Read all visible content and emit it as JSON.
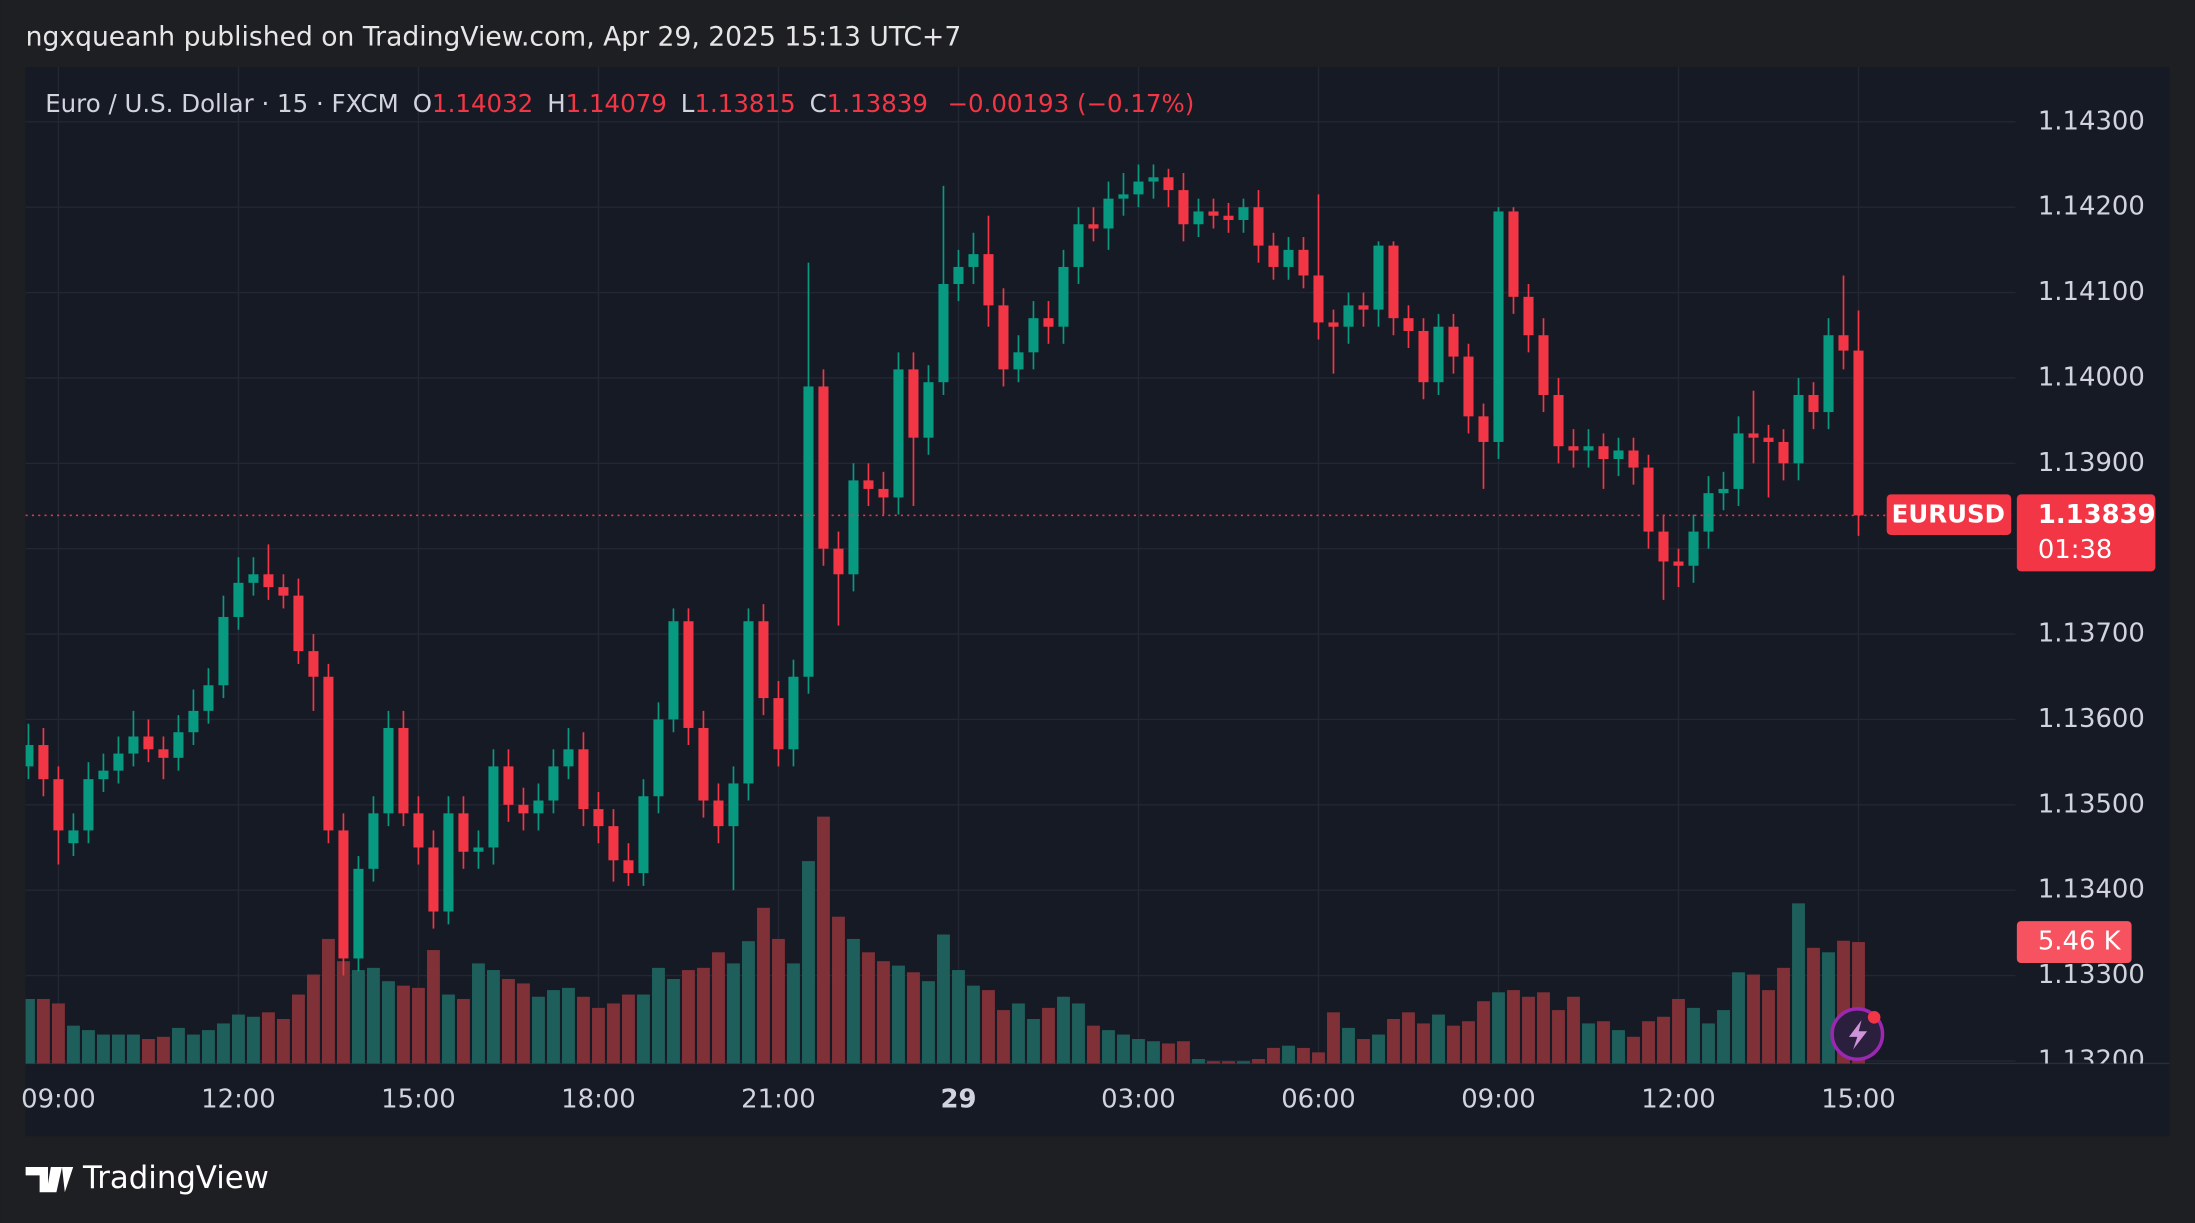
{
  "chart_data": {
    "type": "candlestick",
    "attribution": "ngxqueanh published on TradingView.com, Apr 29, 2025 15:13 UTC+7",
    "symbol": "Euro / U.S. Dollar · 15 · FXCM",
    "ohlc_labels": [
      "O",
      "H",
      "L",
      "C"
    ],
    "change_label": "−0.00193 (−0.17%)",
    "ticker": "EURUSD",
    "countdown": "01:38",
    "last_volume_label": "5.46 K",
    "brand": "TradingView",
    "colors": {
      "up": "#089981",
      "down": "#f23645",
      "volume_up": "#1f5f5b",
      "volume_down": "#7f3137"
    },
    "grid": true,
    "ylim": [
      1.13197,
      1.14364
    ],
    "yticks": [
      {
        "value": 1.132,
        "label": "1.13200"
      },
      {
        "value": 1.133,
        "label": "1.13300"
      },
      {
        "value": 1.134,
        "label": "1.13400"
      },
      {
        "value": 1.135,
        "label": "1.13500"
      },
      {
        "value": 1.136,
        "label": "1.13600"
      },
      {
        "value": 1.137,
        "label": "1.13700"
      },
      {
        "value": 1.138,
        "label": "1.13800"
      },
      {
        "value": 1.139,
        "label": "1.13900"
      },
      {
        "value": 1.14,
        "label": "1.14000"
      },
      {
        "value": 1.141,
        "label": "1.14100"
      },
      {
        "value": 1.142,
        "label": "1.14200"
      },
      {
        "value": 1.143,
        "label": "1.14300"
      }
    ],
    "volume_ylim": [
      0,
      44.8
    ],
    "categories": [
      null,
      null,
      "09:00",
      null,
      null,
      null,
      null,
      null,
      null,
      null,
      null,
      null,
      null,
      null,
      "12:00",
      null,
      null,
      null,
      null,
      null,
      null,
      null,
      null,
      null,
      null,
      null,
      "15:00",
      null,
      null,
      null,
      null,
      null,
      null,
      null,
      null,
      null,
      null,
      null,
      "18:00",
      null,
      null,
      null,
      null,
      null,
      null,
      null,
      null,
      null,
      null,
      null,
      "21:00",
      null,
      null,
      null,
      null,
      null,
      null,
      null,
      null,
      null,
      null,
      null,
      "29",
      null,
      null,
      null,
      null,
      null,
      null,
      null,
      null,
      null,
      null,
      null,
      "03:00",
      null,
      null,
      null,
      null,
      null,
      null,
      null,
      null,
      null,
      null,
      null,
      "06:00",
      null,
      null,
      null,
      null,
      null,
      null,
      null,
      null,
      null,
      null,
      null,
      "09:00",
      null,
      null,
      null,
      null,
      null,
      null,
      null,
      null,
      null,
      null,
      null,
      "12:00",
      null,
      null,
      null,
      null,
      null,
      null,
      null,
      null,
      null,
      null,
      null,
      "15:00"
    ],
    "open": [
      1.13545,
      1.1357,
      1.1353,
      1.13455,
      1.1347,
      1.1353,
      1.1354,
      1.1356,
      1.1358,
      1.13565,
      1.13555,
      1.13585,
      1.1361,
      1.1364,
      1.1372,
      1.1376,
      1.1377,
      1.13755,
      1.13745,
      1.1368,
      1.1365,
      1.1347,
      1.1332,
      1.13425,
      1.1349,
      1.1359,
      1.1349,
      1.1345,
      1.13375,
      1.1349,
      1.13445,
      1.1345,
      1.13545,
      1.135,
      1.1349,
      1.13505,
      1.13545,
      1.13565,
      1.13495,
      1.13475,
      1.13435,
      1.1342,
      1.1351,
      1.136,
      1.13715,
      1.1359,
      1.13505,
      1.13475,
      1.13525,
      1.13715,
      1.13625,
      1.13565,
      1.1365,
      1.1399,
      1.138,
      1.1377,
      1.1388,
      1.1387,
      1.1386,
      1.1401,
      1.1393,
      1.13995,
      1.1411,
      1.1413,
      1.14145,
      1.14085,
      1.1401,
      1.1403,
      1.1407,
      1.1406,
      1.1413,
      1.1418,
      1.14175,
      1.1421,
      1.14215,
      1.1423,
      1.14235,
      1.1422,
      1.1418,
      1.14195,
      1.1419,
      1.14185,
      1.142,
      1.14155,
      1.1413,
      1.1415,
      1.1412,
      1.14065,
      1.1406,
      1.14085,
      1.1408,
      1.14155,
      1.1407,
      1.14055,
      1.13995,
      1.1406,
      1.14025,
      1.13955,
      1.13925,
      1.14195,
      1.14095,
      1.1405,
      1.1398,
      1.1392,
      1.13915,
      1.1392,
      1.13905,
      1.13915,
      1.13895,
      1.1382,
      1.13785,
      1.1378,
      1.1382,
      1.13865,
      1.1387,
      1.13935,
      1.1393,
      1.13925,
      1.139,
      1.1398,
      1.1396,
      1.1405,
      1.14032
    ],
    "high": [
      1.13595,
      1.1359,
      1.13545,
      1.1349,
      1.1355,
      1.1356,
      1.1358,
      1.1361,
      1.136,
      1.1358,
      1.13605,
      1.13635,
      1.1366,
      1.13745,
      1.1379,
      1.1379,
      1.13805,
      1.1377,
      1.13765,
      1.137,
      1.13665,
      1.1349,
      1.1344,
      1.1351,
      1.1361,
      1.1361,
      1.1351,
      1.1347,
      1.1351,
      1.1351,
      1.1347,
      1.13565,
      1.13565,
      1.1352,
      1.13525,
      1.13565,
      1.1359,
      1.13585,
      1.13515,
      1.13495,
      1.13455,
      1.1353,
      1.1362,
      1.1373,
      1.1373,
      1.1361,
      1.13525,
      1.13545,
      1.1373,
      1.13735,
      1.13645,
      1.1367,
      1.14135,
      1.1401,
      1.1382,
      1.139,
      1.139,
      1.1389,
      1.1403,
      1.1403,
      1.14015,
      1.14225,
      1.1415,
      1.1417,
      1.1419,
      1.14105,
      1.1405,
      1.1409,
      1.1409,
      1.1415,
      1.142,
      1.142,
      1.1423,
      1.1424,
      1.1425,
      1.1425,
      1.14245,
      1.1424,
      1.1421,
      1.1421,
      1.14205,
      1.1421,
      1.1422,
      1.1417,
      1.14165,
      1.14165,
      1.14215,
      1.1408,
      1.141,
      1.141,
      1.1416,
      1.1416,
      1.14085,
      1.1407,
      1.14075,
      1.14075,
      1.1404,
      1.1397,
      1.142,
      1.142,
      1.1411,
      1.1407,
      1.14,
      1.1394,
      1.1394,
      1.13935,
      1.1393,
      1.1393,
      1.1391,
      1.1384,
      1.138,
      1.1384,
      1.13885,
      1.1389,
      1.13955,
      1.13985,
      1.13945,
      1.1394,
      1.14,
      1.13995,
      1.1407,
      1.1412,
      1.14079
    ],
    "low": [
      1.1353,
      1.1351,
      1.1343,
      1.1344,
      1.13455,
      1.13515,
      1.13525,
      1.13545,
      1.1355,
      1.1353,
      1.1354,
      1.1357,
      1.13595,
      1.13625,
      1.13705,
      1.13745,
      1.1374,
      1.1373,
      1.13665,
      1.1361,
      1.13455,
      1.133,
      1.13305,
      1.1341,
      1.13475,
      1.13475,
      1.1343,
      1.13355,
      1.1336,
      1.13425,
      1.13425,
      1.1343,
      1.1348,
      1.1347,
      1.1347,
      1.1349,
      1.1353,
      1.13475,
      1.13455,
      1.1341,
      1.13405,
      1.13405,
      1.1349,
      1.13585,
      1.1357,
      1.13485,
      1.13455,
      1.134,
      1.13505,
      1.13605,
      1.13545,
      1.13545,
      1.1363,
      1.1378,
      1.1371,
      1.1375,
      1.1385,
      1.1384,
      1.1384,
      1.1385,
      1.1391,
      1.1398,
      1.1409,
      1.1411,
      1.1406,
      1.1399,
      1.13995,
      1.1401,
      1.1404,
      1.1404,
      1.1411,
      1.1416,
      1.1415,
      1.1419,
      1.142,
      1.1421,
      1.142,
      1.1416,
      1.14165,
      1.14175,
      1.1417,
      1.1417,
      1.14135,
      1.14115,
      1.14115,
      1.14105,
      1.14045,
      1.14005,
      1.1404,
      1.1406,
      1.1406,
      1.1405,
      1.14035,
      1.13975,
      1.1398,
      1.14005,
      1.13935,
      1.1387,
      1.13905,
      1.14075,
      1.1403,
      1.1396,
      1.139,
      1.13895,
      1.13895,
      1.1387,
      1.13885,
      1.13875,
      1.138,
      1.1374,
      1.13755,
      1.1376,
      1.138,
      1.13845,
      1.1385,
      1.139,
      1.1386,
      1.1388,
      1.1388,
      1.1394,
      1.1394,
      1.1401,
      1.13815
    ],
    "close": [
      1.1357,
      1.1353,
      1.1347,
      1.1347,
      1.1353,
      1.1354,
      1.1356,
      1.1358,
      1.13565,
      1.13555,
      1.13585,
      1.1361,
      1.1364,
      1.1372,
      1.1376,
      1.1377,
      1.13755,
      1.13745,
      1.1368,
      1.1365,
      1.1347,
      1.1332,
      1.13425,
      1.1349,
      1.1359,
      1.1349,
      1.1345,
      1.13375,
      1.1349,
      1.13445,
      1.1345,
      1.13545,
      1.135,
      1.1349,
      1.13505,
      1.13545,
      1.13565,
      1.13495,
      1.13475,
      1.13435,
      1.1342,
      1.1351,
      1.136,
      1.13715,
      1.1359,
      1.13505,
      1.13475,
      1.13525,
      1.13715,
      1.13625,
      1.13565,
      1.1365,
      1.1399,
      1.138,
      1.1377,
      1.1388,
      1.1387,
      1.1386,
      1.1401,
      1.1393,
      1.13995,
      1.1411,
      1.1413,
      1.14145,
      1.14085,
      1.1401,
      1.1403,
      1.1407,
      1.1406,
      1.1413,
      1.1418,
      1.14175,
      1.1421,
      1.14215,
      1.1423,
      1.14235,
      1.1422,
      1.1418,
      1.14195,
      1.1419,
      1.14185,
      1.142,
      1.14155,
      1.1413,
      1.1415,
      1.1412,
      1.14065,
      1.1406,
      1.14085,
      1.1408,
      1.14155,
      1.1407,
      1.14055,
      1.13995,
      1.1406,
      1.14025,
      1.13955,
      1.13925,
      1.14195,
      1.14095,
      1.1405,
      1.1398,
      1.1392,
      1.13915,
      1.1392,
      1.13905,
      1.13915,
      1.13895,
      1.1382,
      1.13785,
      1.1378,
      1.1382,
      1.13865,
      1.1387,
      1.13935,
      1.1393,
      1.13925,
      1.139,
      1.1398,
      1.1396,
      1.1405,
      1.14032,
      1.13839
    ],
    "volume": [
      2.9,
      2.9,
      2.7,
      1.7,
      1.5,
      1.3,
      1.3,
      1.3,
      1.1,
      1.2,
      1.6,
      1.3,
      1.5,
      1.8,
      2.2,
      2.1,
      2.3,
      2.0,
      3.1,
      4.0,
      5.6,
      4.6,
      4.2,
      4.3,
      3.7,
      3.5,
      3.4,
      5.1,
      3.1,
      2.9,
      4.5,
      4.2,
      3.8,
      3.6,
      3.0,
      3.3,
      3.4,
      3.0,
      2.5,
      2.7,
      3.1,
      3.1,
      4.3,
      3.8,
      4.2,
      4.3,
      5.0,
      4.5,
      5.5,
      7.0,
      5.6,
      4.5,
      9.1,
      11.1,
      6.6,
      5.6,
      5.0,
      4.6,
      4.4,
      4.1,
      3.7,
      5.8,
      4.2,
      3.5,
      3.3,
      2.4,
      2.7,
      2.0,
      2.5,
      3.0,
      2.7,
      1.7,
      1.5,
      1.3,
      1.1,
      1.0,
      0.9,
      1.0,
      0.2,
      0.1,
      0.1,
      0.1,
      0.2,
      0.7,
      0.8,
      0.7,
      0.5,
      2.3,
      1.6,
      1.1,
      1.3,
      2.0,
      2.3,
      1.8,
      2.2,
      1.7,
      1.9,
      2.8,
      3.2,
      3.3,
      3.0,
      3.2,
      2.4,
      3.0,
      1.8,
      1.9,
      1.5,
      1.2,
      1.9,
      2.1,
      2.9,
      2.5,
      1.8,
      2.4,
      4.1,
      4.0,
      3.3,
      4.3,
      7.2,
      5.2,
      5.0,
      5.52,
      5.46
    ]
  }
}
